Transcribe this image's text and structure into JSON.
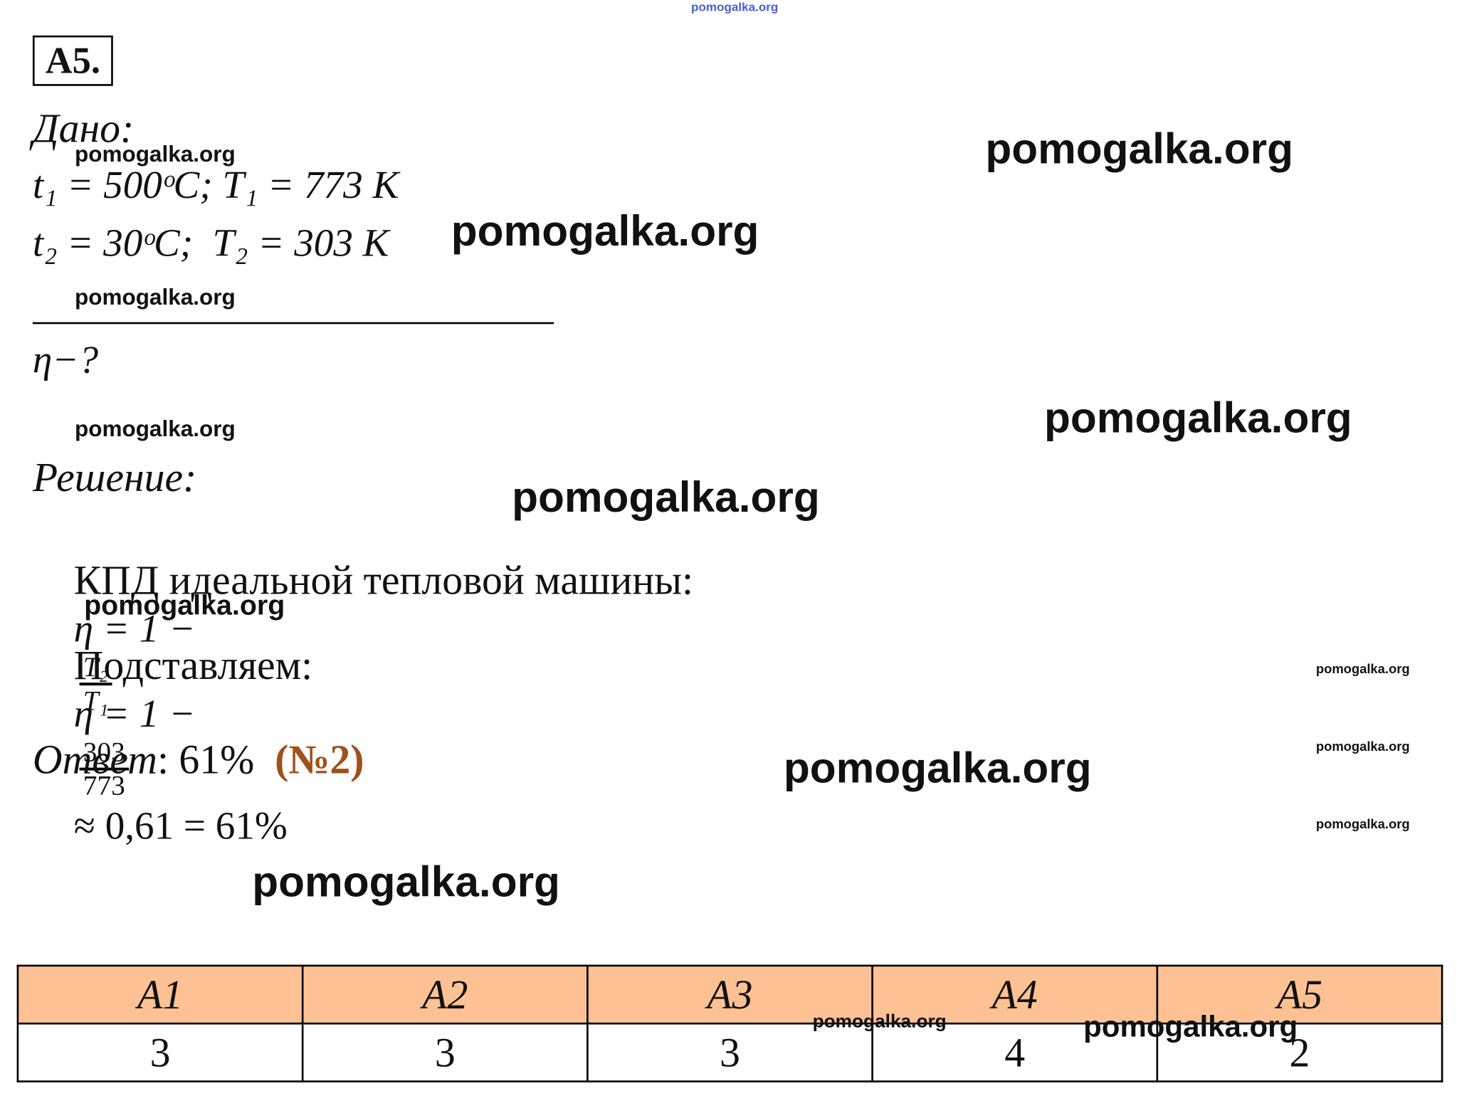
{
  "header": {
    "title": "A5."
  },
  "given": {
    "title": "Дано:",
    "lines": [
      "t₁ = 500ᵒC; T₁ = 773 K",
      "t₂ = 30ᵒC;  T₂ = 303 K"
    ],
    "unknown": "η−?"
  },
  "solution": {
    "title": "Решение:",
    "formula": {
      "text": "КПД идеальной тепловой машины:",
      "lhs": "η = 1 −",
      "numerator": "T₂",
      "denominator": "T₁"
    },
    "substitution": {
      "text": "Подставляем:",
      "lhs": "η = 1 −",
      "numerator": "303",
      "denominator": "773",
      "rhs": "≈ 0,61 = 61%"
    }
  },
  "answer": {
    "label": "Ответ",
    "value": ": 61%",
    "choice": "(№2)"
  },
  "table": {
    "header": [
      "A1",
      "A2",
      "A3",
      "A4",
      "A5"
    ],
    "rows": [
      [
        "3",
        "3",
        "3",
        "4",
        "2"
      ]
    ]
  },
  "watermarks": [
    "pomogalka.org",
    "pomogalka.org",
    "pomogalka.org",
    "pomogalka.org",
    "pomogalka.org",
    "pomogalka.org",
    "pomogalka.org",
    "pomogalka.org",
    "pomogalka.org",
    "pomogalka.org",
    "pomogalka.org",
    "pomogalka.org",
    "pomogalka.org",
    "pomogalka.org",
    "pomogalka.org",
    "pomogalka.org"
  ]
}
